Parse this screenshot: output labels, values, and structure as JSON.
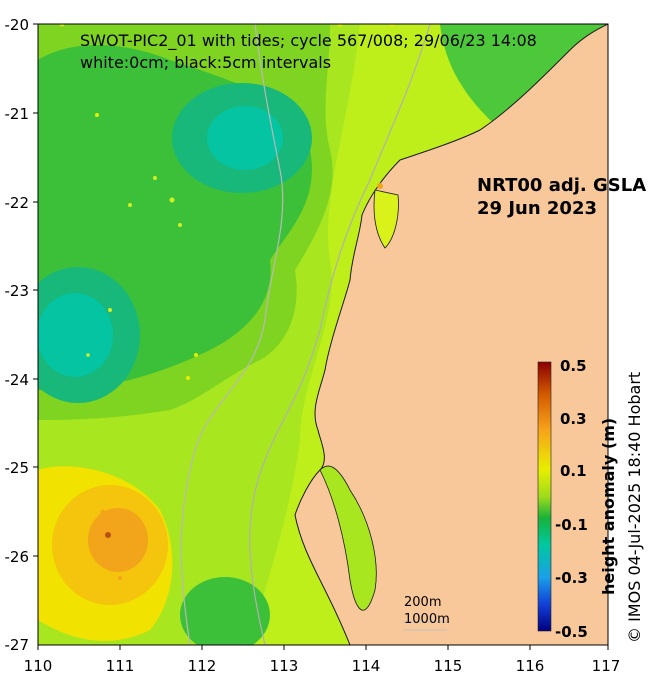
{
  "title_line1": "SWOT-PIC2_01 with tides; cycle 567/008; 29/06/23 14:08",
  "title_line2": "white:0cm; black:5cm intervals",
  "product_line1": "NRT00 adj. GSLA",
  "product_line2": "29 Jun 2023",
  "credit": "© IMOS 04-Jul-2025 18:40 Hobart",
  "colorbar": {
    "label": "height anomaly (m)",
    "tick_labels": [
      "0.5",
      "0.3",
      "0.1",
      "-0.1",
      "-0.3",
      "-0.5"
    ],
    "range": [
      -0.5,
      0.5
    ]
  },
  "bathymetry_legend": [
    "200m",
    "1000m"
  ],
  "axes": {
    "x_ticks": [
      "110",
      "111",
      "112",
      "113",
      "114",
      "115",
      "116",
      "117"
    ],
    "y_ticks": [
      "-20",
      "-21",
      "-22",
      "-23",
      "-24",
      "-25",
      "-26",
      "-27"
    ],
    "lon_range": [
      110,
      117
    ],
    "lat_range": [
      -27,
      -20
    ]
  },
  "colors": {
    "land": "#f9c89a",
    "ocean_base": "#bfef1a",
    "contour_low": "#00c5a0",
    "contour_mid": "#14b84a",
    "contour_high": "#f0a818"
  }
}
